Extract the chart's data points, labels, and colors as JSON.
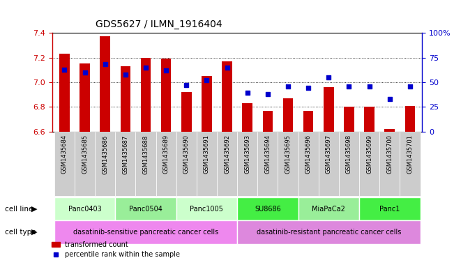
{
  "title": "GDS5627 / ILMN_1916404",
  "samples": [
    "GSM1435684",
    "GSM1435685",
    "GSM1435686",
    "GSM1435687",
    "GSM1435688",
    "GSM1435689",
    "GSM1435690",
    "GSM1435691",
    "GSM1435692",
    "GSM1435693",
    "GSM1435694",
    "GSM1435695",
    "GSM1435696",
    "GSM1435697",
    "GSM1435698",
    "GSM1435699",
    "GSM1435700",
    "GSM1435701"
  ],
  "transformed_count": [
    7.23,
    7.15,
    7.37,
    7.13,
    7.2,
    7.19,
    6.92,
    7.05,
    7.17,
    6.83,
    6.77,
    6.87,
    6.77,
    6.96,
    6.8,
    6.8,
    6.62,
    6.81
  ],
  "percentile_rank": [
    63,
    60,
    68,
    58,
    65,
    62,
    47,
    52,
    65,
    39,
    38,
    46,
    44,
    55,
    46,
    46,
    33,
    46
  ],
  "ylim": [
    6.6,
    7.4
  ],
  "ybase": 6.6,
  "right_ylim": [
    0,
    100
  ],
  "yticks": [
    6.6,
    6.8,
    7.0,
    7.2,
    7.4
  ],
  "right_yticks": [
    0,
    25,
    50,
    75,
    100
  ],
  "right_yticklabels": [
    "0",
    "25",
    "50",
    "75",
    "100%"
  ],
  "bar_color": "#cc0000",
  "dot_color": "#0000cc",
  "bar_width": 0.5,
  "cell_lines": [
    {
      "label": "Panc0403",
      "start": 0,
      "end": 2,
      "color": "#ccffcc"
    },
    {
      "label": "Panc0504",
      "start": 3,
      "end": 5,
      "color": "#99ee99"
    },
    {
      "label": "Panc1005",
      "start": 6,
      "end": 8,
      "color": "#ccffcc"
    },
    {
      "label": "SU8686",
      "start": 9,
      "end": 11,
      "color": "#44ee44"
    },
    {
      "label": "MiaPaCa2",
      "start": 12,
      "end": 14,
      "color": "#99ee99"
    },
    {
      "label": "Panc1",
      "start": 15,
      "end": 17,
      "color": "#44ee44"
    }
  ],
  "cell_types": [
    {
      "label": "dasatinib-sensitive pancreatic cancer cells",
      "start": 0,
      "end": 8,
      "color": "#ee88ee"
    },
    {
      "label": "dasatinib-resistant pancreatic cancer cells",
      "start": 9,
      "end": 17,
      "color": "#dd88dd"
    }
  ],
  "legend_bar_label": "transformed count",
  "legend_dot_label": "percentile rank within the sample",
  "xlabel_color": "#cc0000",
  "right_axis_color": "#0000cc",
  "tick_label_bg": "#cccccc",
  "cell_line_row_label": "cell line",
  "cell_type_row_label": "cell type"
}
